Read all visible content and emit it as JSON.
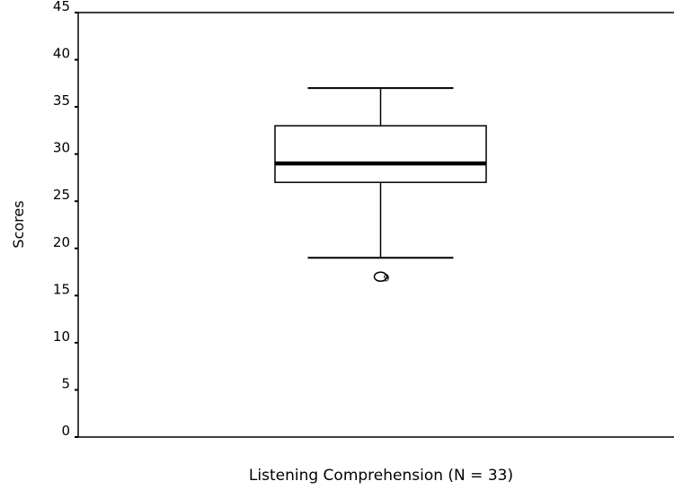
{
  "chart_data": {
    "type": "box",
    "xlabel": "Listening Comprehension (N = 33)",
    "ylabel": "Scores",
    "ylim": [
      0,
      45
    ],
    "yticks": [
      0,
      5,
      10,
      15,
      20,
      25,
      30,
      35,
      40,
      45
    ],
    "grid": false,
    "boxes": [
      {
        "whisker_low": 19,
        "q1": 27,
        "median": 29,
        "q3": 33,
        "whisker_high": 37,
        "outliers": [
          {
            "value": 17,
            "label": "9"
          }
        ]
      }
    ]
  }
}
